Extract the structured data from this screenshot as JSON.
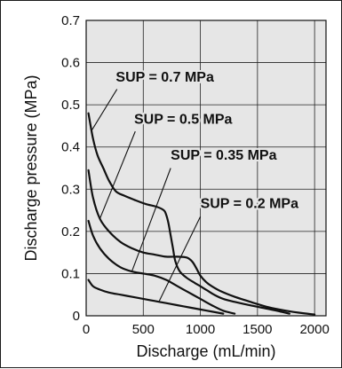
{
  "chart_data": {
    "type": "line",
    "xlabel": "Discharge (mL/min)",
    "ylabel": "Discharge pressure (MPa)",
    "xlim": [
      0,
      2100
    ],
    "ylim": [
      0,
      0.7
    ],
    "x_ticks": [
      0,
      500,
      1000,
      1500,
      2000
    ],
    "x_tick_labels": [
      "0",
      "500",
      "1000",
      "1500",
      "2000"
    ],
    "y_ticks": [
      0,
      0.1,
      0.2,
      0.3,
      0.4,
      0.5,
      0.6,
      0.7
    ],
    "y_tick_labels": [
      "0",
      "0.1",
      "0.2",
      "0.3",
      "0.4",
      "0.5",
      "0.6",
      "0.7"
    ],
    "grid": true,
    "background_color": "#e6e6e6",
    "line_color": "#111111",
    "series": [
      {
        "name": "SUP = 0.7 MPa",
        "x": [
          20,
          60,
          100,
          150,
          200,
          260,
          330,
          420,
          520,
          620,
          680,
          700,
          720,
          740,
          760,
          780,
          820,
          880,
          950,
          1000,
          1060,
          1120,
          1200,
          1300,
          1450,
          1600,
          1700,
          1780
        ],
        "y": [
          0.48,
          0.42,
          0.38,
          0.35,
          0.32,
          0.295,
          0.285,
          0.275,
          0.265,
          0.258,
          0.25,
          0.24,
          0.22,
          0.19,
          0.16,
          0.13,
          0.105,
          0.09,
          0.078,
          0.07,
          0.06,
          0.05,
          0.04,
          0.033,
          0.024,
          0.016,
          0.01,
          0.005
        ]
      },
      {
        "name": "SUP = 0.5 MPa",
        "x": [
          20,
          60,
          120,
          200,
          300,
          400,
          500,
          600,
          700,
          800,
          880,
          930,
          970,
          1000,
          1050,
          1100,
          1180,
          1300,
          1450,
          1600,
          1750,
          1900,
          2000
        ],
        "y": [
          0.345,
          0.28,
          0.23,
          0.2,
          0.175,
          0.16,
          0.15,
          0.145,
          0.14,
          0.14,
          0.138,
          0.128,
          0.11,
          0.095,
          0.08,
          0.07,
          0.058,
          0.045,
          0.032,
          0.02,
          0.012,
          0.006,
          0.003
        ]
      },
      {
        "name": "SUP = 0.35 MPa",
        "x": [
          20,
          60,
          120,
          200,
          300,
          400,
          500,
          600,
          700,
          800,
          900,
          1000,
          1100,
          1200,
          1300
        ],
        "y": [
          0.225,
          0.19,
          0.16,
          0.135,
          0.115,
          0.105,
          0.1,
          0.095,
          0.085,
          0.07,
          0.055,
          0.04,
          0.025,
          0.012,
          0.005
        ]
      },
      {
        "name": "SUP = 0.2 MPa",
        "x": [
          20,
          60,
          120,
          200,
          300,
          400,
          500,
          600,
          700,
          800,
          900,
          1000,
          1100,
          1200
        ],
        "y": [
          0.085,
          0.07,
          0.062,
          0.055,
          0.05,
          0.045,
          0.04,
          0.035,
          0.03,
          0.025,
          0.02,
          0.015,
          0.01,
          0.005
        ]
      }
    ],
    "annotations": [
      {
        "series": "SUP = 0.7 MPa",
        "text": "SUP = 0.7 MPa",
        "label_at": [
          260,
          0.555
        ],
        "leader_text_end": [
          270,
          0.537
        ],
        "points_to": [
          50,
          0.44
        ]
      },
      {
        "series": "SUP = 0.5 MPa",
        "text": "SUP = 0.5 MPa",
        "label_at": [
          420,
          0.455
        ],
        "leader_text_end": [
          430,
          0.437
        ],
        "points_to": [
          120,
          0.23
        ]
      },
      {
        "series": "SUP = 0.35 MPa",
        "text": "SUP = 0.35 MPa",
        "label_at": [
          740,
          0.37
        ],
        "leader_text_end": [
          740,
          0.35
        ],
        "points_to": [
          400,
          0.105
        ]
      },
      {
        "series": "SUP = 0.2 MPa",
        "text": "SUP = 0.2 MPa",
        "label_at": [
          1000,
          0.255
        ],
        "leader_text_end": [
          1000,
          0.235
        ],
        "points_to": [
          640,
          0.035
        ]
      }
    ]
  }
}
